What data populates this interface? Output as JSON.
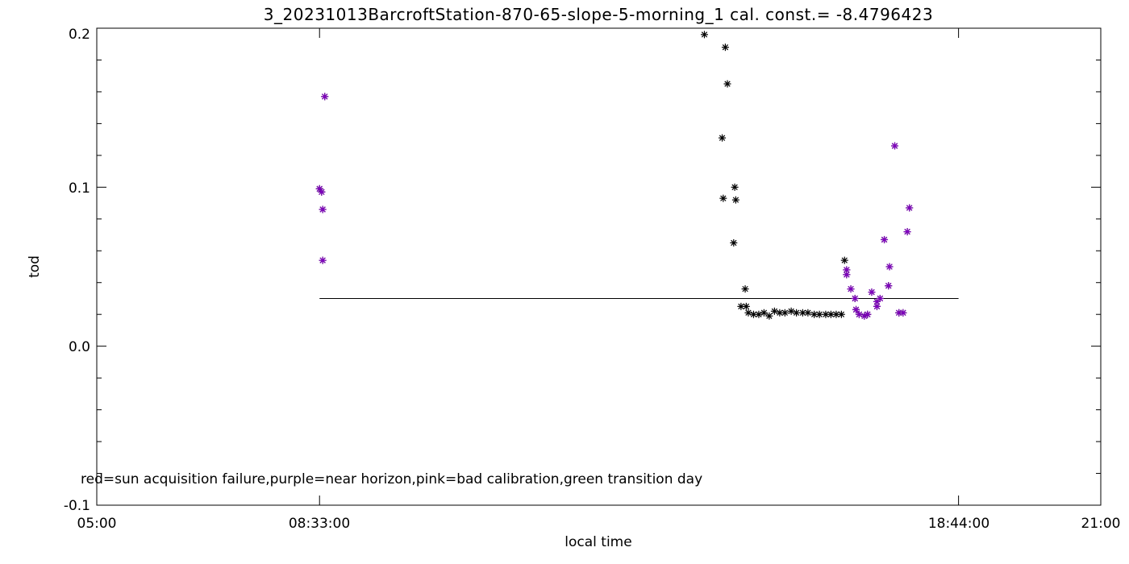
{
  "chart_data": {
    "type": "scatter",
    "title": "3_20231013BarcroftStation-870-65-slope-5-morning_1 cal. const.= -8.4796423",
    "xlabel": "local time",
    "ylabel": "tod",
    "xlim": [
      "05:00",
      "21:00"
    ],
    "ylim": [
      -0.1,
      0.2
    ],
    "x_tick_labels": [
      "05:00",
      "08:33:00",
      "18:44:00",
      "21:00"
    ],
    "y_tick_labels": [
      "-0.1",
      "0.0",
      "0.1",
      "0.2"
    ],
    "annotation": "red=sun acquisition failure,purple=near horizon,pink=bad calibration,green transition day",
    "colors": {
      "normal": "#000000",
      "near_horizon": "#8000c0",
      "line": "#000000"
    },
    "reference_line": {
      "x": [
        "08:33",
        "18:44"
      ],
      "y": 0.03
    },
    "series": [
      {
        "flag": "normal",
        "points": [
          [
            "14:41",
            0.196
          ],
          [
            "15:01",
            0.188
          ],
          [
            "15:03",
            0.165
          ],
          [
            "14:58",
            0.131
          ],
          [
            "15:10",
            0.1
          ],
          [
            "15:11",
            0.092
          ],
          [
            "14:59",
            0.093
          ],
          [
            "15:09",
            0.065
          ],
          [
            "15:20",
            0.036
          ],
          [
            "15:16",
            0.025
          ],
          [
            "15:21",
            0.025
          ],
          [
            "15:23",
            0.021
          ],
          [
            "15:28",
            0.02
          ],
          [
            "15:33",
            0.02
          ],
          [
            "15:38",
            0.021
          ],
          [
            "15:43",
            0.019
          ],
          [
            "15:48",
            0.022
          ],
          [
            "15:53",
            0.021
          ],
          [
            "15:58",
            0.021
          ],
          [
            "16:04",
            0.022
          ],
          [
            "16:09",
            0.021
          ],
          [
            "16:15",
            0.021
          ],
          [
            "16:20",
            0.021
          ],
          [
            "16:26",
            0.02
          ],
          [
            "16:31",
            0.02
          ],
          [
            "16:37",
            0.02
          ],
          [
            "16:42",
            0.02
          ],
          [
            "16:47",
            0.02
          ],
          [
            "16:52",
            0.02
          ],
          [
            "16:55",
            0.054
          ]
        ]
      },
      {
        "flag": "near_horizon",
        "points": [
          [
            "08:33",
            0.099
          ],
          [
            "08:35",
            0.097
          ],
          [
            "08:36",
            0.086
          ],
          [
            "08:36",
            0.054
          ],
          [
            "08:38",
            0.157
          ],
          [
            "16:57",
            0.048
          ],
          [
            "16:57",
            0.045
          ],
          [
            "17:01",
            0.036
          ],
          [
            "17:05",
            0.03
          ],
          [
            "17:06",
            0.023
          ],
          [
            "17:09",
            0.02
          ],
          [
            "17:14",
            0.019
          ],
          [
            "17:17",
            0.02
          ],
          [
            "17:21",
            0.034
          ],
          [
            "17:26",
            0.028
          ],
          [
            "17:26",
            0.025
          ],
          [
            "17:29",
            0.03
          ],
          [
            "17:33",
            0.067
          ],
          [
            "17:37",
            0.038
          ],
          [
            "17:38",
            0.05
          ],
          [
            "17:43",
            0.126
          ],
          [
            "17:47",
            0.021
          ],
          [
            "17:51",
            0.021
          ],
          [
            "17:55",
            0.072
          ],
          [
            "17:57",
            0.087
          ]
        ]
      }
    ]
  }
}
